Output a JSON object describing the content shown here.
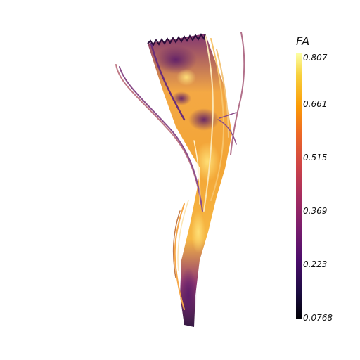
{
  "colorbar": {
    "title": "FA",
    "ticks": [
      "0.807",
      "0.661",
      "0.515",
      "0.369",
      "0.223",
      "0.0768"
    ],
    "range": [
      0.0768,
      0.807
    ],
    "colormap": "inferno"
  },
  "colors": {
    "background": "#ffffff",
    "high": "#fcffa4",
    "mid_high": "#f7a51e",
    "mid": "#d9504a",
    "low": "#3b0f70"
  }
}
